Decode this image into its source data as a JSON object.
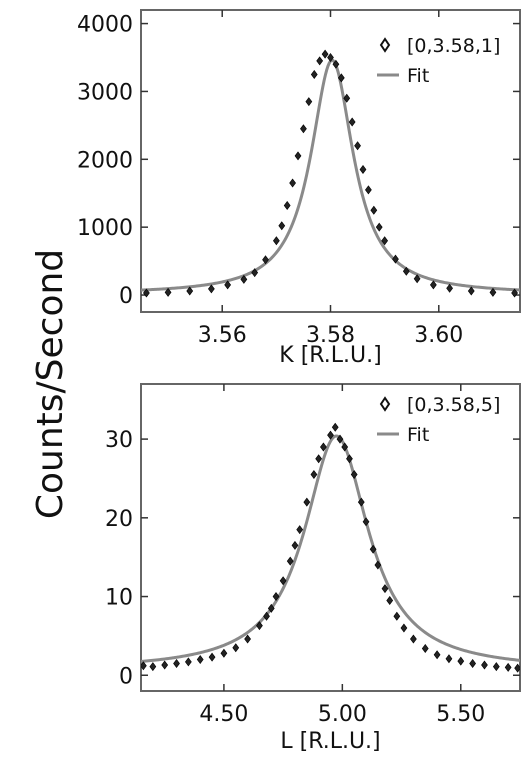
{
  "figure": {
    "ylabel": "Counts/Second"
  },
  "chart_data": [
    {
      "type": "scatter",
      "xlabel": "K [R.L.U.]",
      "xlim": [
        3.545,
        3.615
      ],
      "ylim": [
        -250,
        4200
      ],
      "xticks": [
        3.56,
        3.58,
        3.6
      ],
      "xtick_labels": [
        "3.56",
        "3.58",
        "3.60"
      ],
      "yticks": [
        0,
        1000,
        2000,
        3000,
        4000
      ],
      "ytick_labels": [
        "0",
        "1000",
        "2000",
        "3000",
        "4000"
      ],
      "legend_position": "top-right",
      "series": [
        {
          "name": "[0,3.58,1]",
          "kind": "points",
          "x": [
            3.546,
            3.55,
            3.554,
            3.558,
            3.561,
            3.564,
            3.566,
            3.568,
            3.57,
            3.571,
            3.572,
            3.573,
            3.574,
            3.575,
            3.576,
            3.577,
            3.578,
            3.579,
            3.58,
            3.581,
            3.582,
            3.583,
            3.584,
            3.585,
            3.586,
            3.587,
            3.588,
            3.589,
            3.59,
            3.592,
            3.594,
            3.596,
            3.599,
            3.602,
            3.606,
            3.61,
            3.614
          ],
          "y": [
            30,
            40,
            60,
            90,
            150,
            230,
            330,
            520,
            800,
            1020,
            1320,
            1650,
            2050,
            2450,
            2850,
            3250,
            3450,
            3550,
            3500,
            3400,
            3200,
            2900,
            2550,
            2200,
            1850,
            1550,
            1250,
            1000,
            800,
            530,
            350,
            240,
            150,
            100,
            60,
            40,
            30
          ]
        },
        {
          "name": "Fit",
          "kind": "line",
          "model": "lorentzian",
          "center": 3.5803,
          "hwhm": 0.0048,
          "amplitude": 3450,
          "baseline": 10
        }
      ]
    },
    {
      "type": "scatter",
      "xlabel": "L [R.L.U.]",
      "xlim": [
        4.15,
        5.75
      ],
      "ylim": [
        -2,
        37
      ],
      "xticks": [
        4.5,
        5.0,
        5.5
      ],
      "xtick_labels": [
        "4.50",
        "5.00",
        "5.50"
      ],
      "yticks": [
        0,
        10,
        20,
        30
      ],
      "ytick_labels": [
        "0",
        "10",
        "20",
        "30"
      ],
      "legend_position": "top-right",
      "series": [
        {
          "name": "[0,3.58,5]",
          "kind": "points",
          "x": [
            4.16,
            4.2,
            4.25,
            4.3,
            4.35,
            4.4,
            4.45,
            4.5,
            4.55,
            4.6,
            4.65,
            4.68,
            4.7,
            4.72,
            4.75,
            4.78,
            4.8,
            4.82,
            4.85,
            4.88,
            4.9,
            4.92,
            4.95,
            4.97,
            4.99,
            5.01,
            5.03,
            5.05,
            5.08,
            5.1,
            5.13,
            5.15,
            5.18,
            5.2,
            5.23,
            5.26,
            5.3,
            5.35,
            5.4,
            5.45,
            5.5,
            5.55,
            5.6,
            5.65,
            5.7,
            5.74
          ],
          "y": [
            1.2,
            1.1,
            1.3,
            1.5,
            1.7,
            2.0,
            2.3,
            2.8,
            3.5,
            4.6,
            6.3,
            7.5,
            8.5,
            10.0,
            12.0,
            14.5,
            16.5,
            18.5,
            22.0,
            25.5,
            27.5,
            29.0,
            30.5,
            31.5,
            30.0,
            29.0,
            27.5,
            25.5,
            22.0,
            19.5,
            16.0,
            14.0,
            11.0,
            9.5,
            7.5,
            6.0,
            4.6,
            3.4,
            2.6,
            2.1,
            1.8,
            1.5,
            1.3,
            1.1,
            1.0,
            0.9
          ]
        },
        {
          "name": "Fit",
          "kind": "line",
          "model": "lorentzian",
          "center": 4.975,
          "hwhm": 0.165,
          "amplitude": 29.8,
          "baseline": 0.6
        }
      ]
    }
  ]
}
